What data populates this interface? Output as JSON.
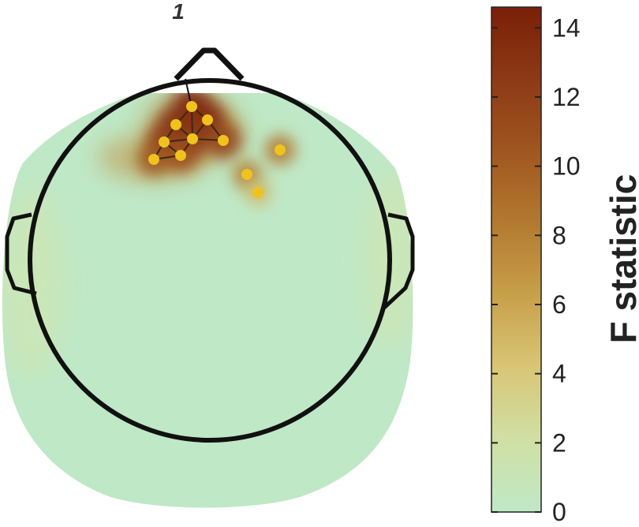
{
  "chart_data": {
    "type": "heatmap",
    "subtype": "scalp-topography",
    "title": "1",
    "colorbar": {
      "label": "F statistic",
      "range": [
        0,
        14.6
      ],
      "ticks": [
        0,
        2,
        4,
        6,
        8,
        10,
        12,
        14
      ],
      "tick_labels": [
        "0",
        "2",
        "4",
        "6",
        "8",
        "10",
        "12",
        "14"
      ],
      "position": "right",
      "colors": [
        "#bfe8c6",
        "#d0e0a4",
        "#d8c676",
        "#c8a04a",
        "#b37a30",
        "#a0561f",
        "#8c3a16",
        "#7a1f08"
      ]
    },
    "grid": false,
    "significant_sensors": [
      {
        "id": "s1",
        "value": 14.2
      },
      {
        "id": "s2",
        "value": 13.5
      },
      {
        "id": "s3",
        "value": 13.8
      },
      {
        "id": "s4",
        "value": 13.0
      },
      {
        "id": "s5",
        "value": 12.5
      },
      {
        "id": "s6",
        "value": 12.0
      },
      {
        "id": "s7",
        "value": 11.0
      },
      {
        "id": "s8",
        "value": 10.5
      },
      {
        "id": "s9",
        "value": 8.5
      },
      {
        "id": "s10",
        "value": 8.0
      },
      {
        "id": "s11",
        "value": 5.0
      }
    ],
    "colors": {
      "background": "#bfe8c6",
      "sensor_marker": "#f0c21e",
      "outline": "#111111"
    }
  }
}
